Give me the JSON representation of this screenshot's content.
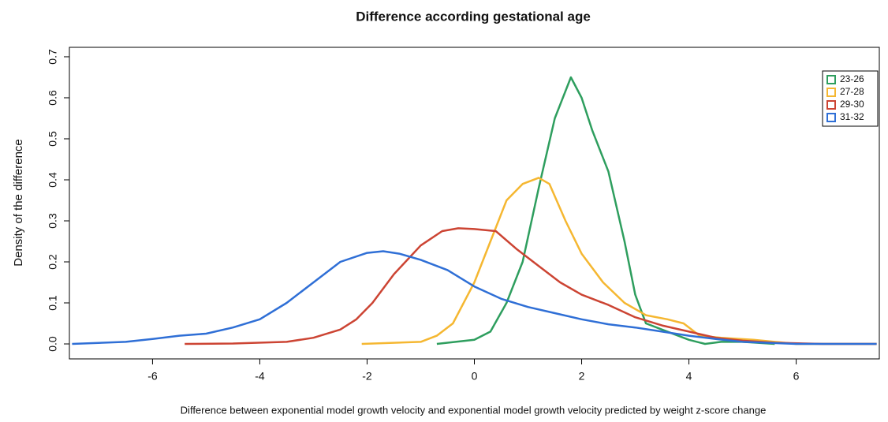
{
  "chart_data": {
    "type": "line",
    "title": "Difference according gestational age",
    "x_label": "Difference between exponential model growth velocity and exponential model growth velocity predicted by weight z-score change",
    "y_label": "Density of the difference",
    "xlim": [
      -7.55,
      7.55
    ],
    "ylim": [
      -0.0365,
      0.723
    ],
    "xticks": [
      -6,
      -4,
      -2,
      0,
      2,
      4,
      6
    ],
    "yticks": [
      {
        "value": 0,
        "label": "0.0"
      },
      0.1,
      0.2,
      0.3,
      0.4,
      0.5,
      0.6,
      0.7
    ],
    "legend": "top-right",
    "series": [
      {
        "name": "23-26",
        "color": "#2e9e5e",
        "x": [
          -0.7,
          0,
          0.3,
          0.6,
          0.9,
          1.2,
          1.5,
          1.8,
          2.0,
          2.2,
          2.5,
          2.8,
          3.0,
          3.2,
          3.6,
          4.0,
          4.3,
          4.6,
          5.0,
          5.6
        ],
        "values": [
          0,
          0.01,
          0.03,
          0.1,
          0.2,
          0.38,
          0.55,
          0.65,
          0.6,
          0.52,
          0.42,
          0.25,
          0.12,
          0.05,
          0.03,
          0.01,
          0,
          0.005,
          0.005,
          0
        ]
      },
      {
        "name": "27-28",
        "color": "#f5b731",
        "x": [
          -2.1,
          -1.0,
          -0.7,
          -0.4,
          0,
          0.3,
          0.6,
          0.9,
          1.2,
          1.4,
          1.7,
          2.0,
          2.4,
          2.8,
          3.2,
          3.6,
          3.9,
          4.2,
          4.6,
          5.2,
          6,
          7.5
        ],
        "values": [
          0,
          0.005,
          0.02,
          0.05,
          0.15,
          0.25,
          0.35,
          0.39,
          0.405,
          0.39,
          0.3,
          0.22,
          0.15,
          0.1,
          0.07,
          0.06,
          0.05,
          0.02,
          0.015,
          0.01,
          0,
          0
        ]
      },
      {
        "name": "29-30",
        "color": "#cc4433",
        "x": [
          -5.4,
          -4.5,
          -3.5,
          -3.0,
          -2.5,
          -2.2,
          -1.9,
          -1.5,
          -1.0,
          -0.6,
          -0.3,
          0,
          0.4,
          0.8,
          1.2,
          1.6,
          2.0,
          2.5,
          3.0,
          3.5,
          4.0,
          4.5,
          5.0,
          5.6,
          6.5,
          7.5
        ],
        "values": [
          0,
          0.001,
          0.005,
          0.015,
          0.035,
          0.06,
          0.1,
          0.17,
          0.24,
          0.275,
          0.282,
          0.28,
          0.275,
          0.23,
          0.19,
          0.15,
          0.12,
          0.095,
          0.065,
          0.045,
          0.03,
          0.015,
          0.008,
          0.003,
          0,
          0
        ]
      },
      {
        "name": "31-32",
        "color": "#2f6fd6",
        "x": [
          -7.5,
          -6.5,
          -6,
          -5.5,
          -5,
          -4.5,
          -4,
          -3.5,
          -3,
          -2.5,
          -2,
          -1.7,
          -1.4,
          -1,
          -0.5,
          0,
          0.5,
          1,
          1.5,
          2,
          2.5,
          3,
          3.5,
          4,
          4.5,
          5,
          6,
          7.5
        ],
        "values": [
          0,
          0.005,
          0.012,
          0.02,
          0.025,
          0.04,
          0.06,
          0.1,
          0.15,
          0.2,
          0.222,
          0.226,
          0.22,
          0.205,
          0.18,
          0.14,
          0.11,
          0.09,
          0.075,
          0.06,
          0.048,
          0.04,
          0.03,
          0.02,
          0.012,
          0.005,
          0,
          0
        ]
      }
    ]
  }
}
